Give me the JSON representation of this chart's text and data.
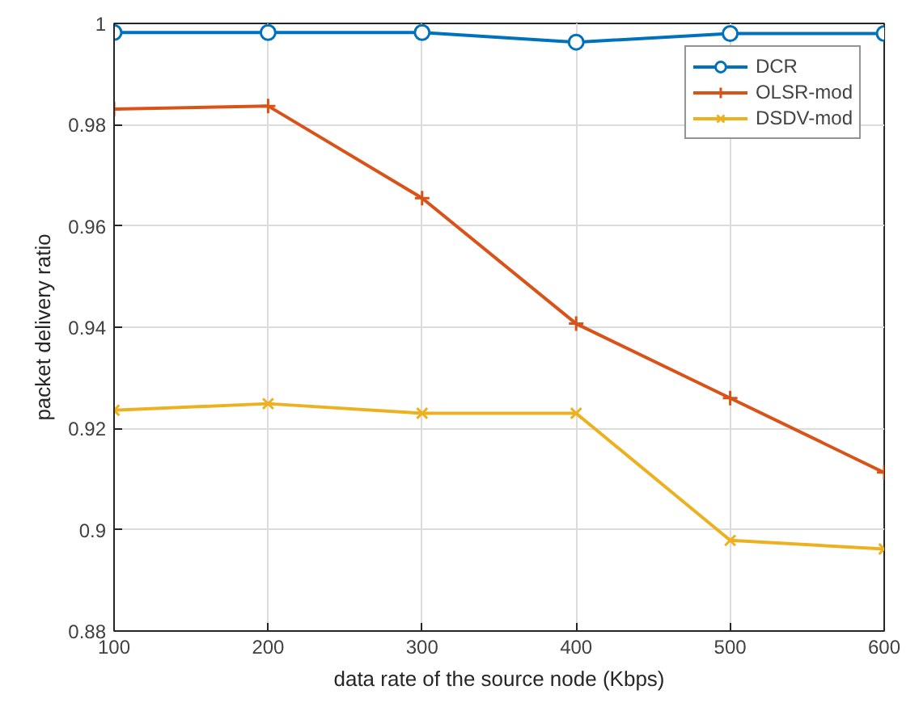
{
  "chart_data": {
    "type": "line",
    "xlabel": "data rate of the source node (Kbps)",
    "ylabel": "packet delivery ratio",
    "x": [
      100,
      200,
      300,
      400,
      500,
      600
    ],
    "series": [
      {
        "name": "DCR",
        "color": "#0072bd",
        "marker": "circle",
        "values": [
          0.9982,
          0.9982,
          0.9982,
          0.9963,
          0.998,
          0.998
        ]
      },
      {
        "name": "OLSR-mod",
        "color": "#d95319",
        "marker": "cross",
        "values": [
          0.9831,
          0.9837,
          0.9655,
          0.9407,
          0.926,
          0.9113
        ]
      },
      {
        "name": "DSDV-mod",
        "color": "#edb120",
        "marker": "x",
        "values": [
          0.9236,
          0.9249,
          0.923,
          0.923,
          0.8979,
          0.8962
        ]
      }
    ],
    "xlim": [
      100,
      600
    ],
    "xticks": [
      100,
      200,
      300,
      400,
      500,
      600
    ],
    "ylim": [
      0.88,
      1
    ],
    "yticks": [
      0.88,
      0.9,
      0.92,
      0.94,
      0.96,
      0.98,
      1
    ],
    "grid": true,
    "legend": "top right",
    "line_style": "solid"
  }
}
